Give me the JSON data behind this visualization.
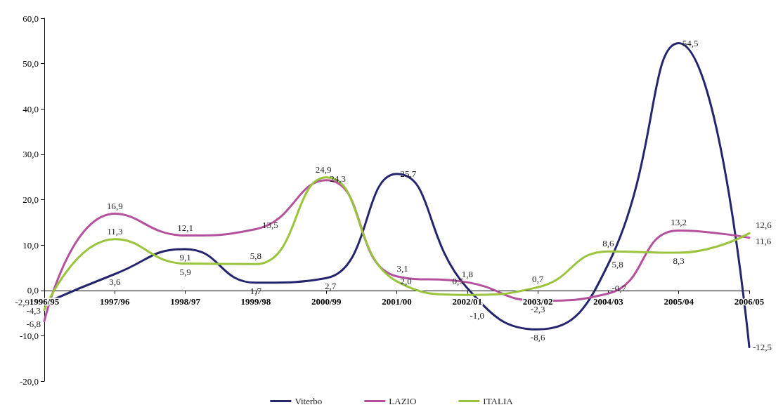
{
  "chart_data": {
    "type": "line",
    "categories": [
      "1996/95",
      "1997/96",
      "1998/97",
      "1999/98",
      "2000/99",
      "2001/00",
      "2002/01",
      "2003/02",
      "2004/03",
      "2005/04",
      "2006/05"
    ],
    "series": [
      {
        "name": "Viterbo",
        "color": "#25256e",
        "values": [
          -2.9,
          3.6,
          9.1,
          1.7,
          2.7,
          25.7,
          0.5,
          -8.6,
          5.8,
          54.5,
          -12.5
        ],
        "value_labels": [
          "-2,9",
          "3,6",
          "9,1",
          "1,7",
          "2,7",
          "25,7",
          "0,5",
          "-8,6",
          "5,8",
          "54,5",
          "-12,5"
        ]
      },
      {
        "name": "LAZIO",
        "color": "#b5509f",
        "values": [
          -6.8,
          16.9,
          12.1,
          13.5,
          24.3,
          3.1,
          1.8,
          -2.3,
          -0.7,
          13.2,
          11.6
        ],
        "value_labels": [
          "-6,8",
          "16,9",
          "12,1",
          "13,5",
          "24,3",
          "3,1",
          "1,8",
          "-2,3",
          "-0,7",
          "13,2",
          "11,6"
        ]
      },
      {
        "name": "ITALIA",
        "color": "#99c43c",
        "values": [
          -4.3,
          11.3,
          5.9,
          5.8,
          24.9,
          2.0,
          -1.0,
          0.7,
          8.6,
          8.3,
          12.6
        ],
        "value_labels": [
          "-4,3",
          "11,3",
          "5,9",
          "5,8",
          "24,9",
          "2,0",
          "-1,0",
          "0,7",
          "8,6",
          "8,3",
          "12,6"
        ]
      }
    ],
    "ylim": [
      -20,
      60
    ],
    "yticks": [
      {
        "value": -20,
        "label": "-20,0"
      },
      {
        "value": -10,
        "label": "-10,0"
      },
      {
        "value": 0,
        "label": "0,0"
      },
      {
        "value": 10,
        "label": "10,0"
      },
      {
        "value": 20,
        "label": "20,0"
      },
      {
        "value": 30,
        "label": "30,0"
      },
      {
        "value": 40,
        "label": "40,0"
      },
      {
        "value": 50,
        "label": "50,0"
      },
      {
        "value": 60,
        "label": "60,0"
      }
    ],
    "grid": false,
    "legend": "bottom",
    "marker": "none",
    "line_style": "solid"
  }
}
